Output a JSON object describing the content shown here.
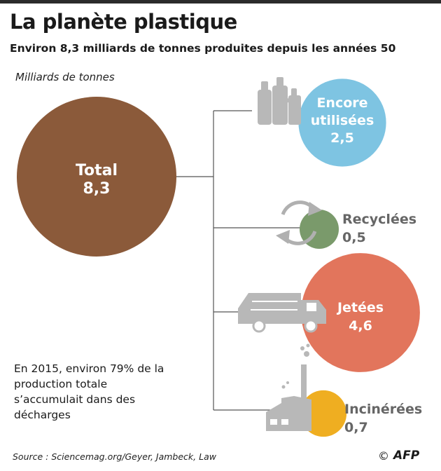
{
  "title": "La planète plastique",
  "subtitle": "Environ 8,3 milliards de tonnes produites depuis les années 50",
  "unit": "Milliards de tonnes",
  "note": "En 2015, environ 79% de la production totale s’accumulait dans des décharges",
  "source": "Source : Sciencemag.org/Geyer, Jambeck, Law",
  "credit": {
    "copyright": "©",
    "agency": "AFP"
  },
  "chart_data": {
    "type": "bubble",
    "total": {
      "name": "Total",
      "value": 8.3,
      "value_label": "8,3",
      "color": "#8b5a3a"
    },
    "categories": [
      {
        "name": "Encore utilisées",
        "line1": "Encore",
        "line2": "utilisées",
        "value": 2.5,
        "value_label": "2,5",
        "color": "#7ec4e2",
        "icon": "bottles-icon"
      },
      {
        "name": "Recyclées",
        "value": 0.5,
        "value_label": "0,5",
        "color": "#7a9a6b",
        "icon": "recycle-arrows-icon"
      },
      {
        "name": "Jetées",
        "value": 4.6,
        "value_label": "4,6",
        "color": "#e2755c",
        "icon": "garbage-truck-icon"
      },
      {
        "name": "Incinérées",
        "value": 0.7,
        "value_label": "0,7",
        "color": "#efae21",
        "icon": "incinerator-icon"
      }
    ]
  }
}
